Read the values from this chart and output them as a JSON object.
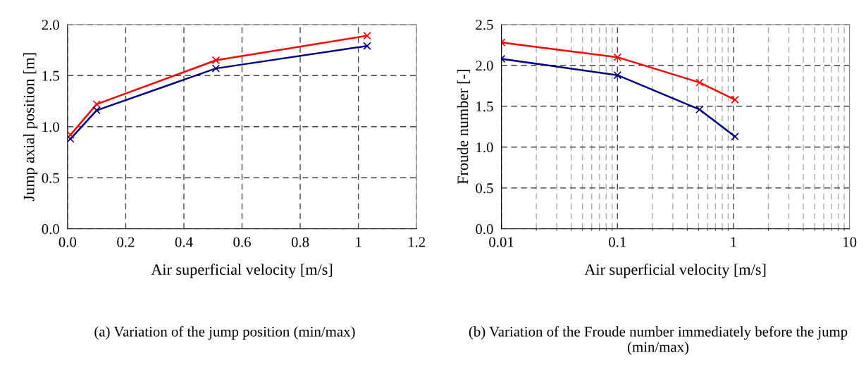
{
  "chart_data": [
    {
      "type": "line",
      "xlabel": "Air superficial velocity [m/s]",
      "ylabel": "Jump axial position [m]",
      "x": [
        0.01,
        0.1,
        0.51,
        1.03
      ],
      "series": [
        {
          "color": "#ff0000",
          "values": [
            0.92,
            1.22,
            1.65,
            1.89
          ]
        },
        {
          "color": "#000080",
          "values": [
            0.88,
            1.16,
            1.57,
            1.79
          ]
        }
      ],
      "xlim": [
        0,
        1.2
      ],
      "xticks": [
        {
          "value": 0,
          "label": "0.0"
        },
        0.2,
        0.4,
        0.6,
        0.8,
        1,
        {
          "value": 1.2,
          "label": "1.2"
        }
      ],
      "ylim": [
        0,
        2
      ],
      "yticks": [
        {
          "value": 0,
          "label": "0.0"
        },
        0.5,
        {
          "value": 1,
          "label": "1.0"
        },
        1.5,
        {
          "value": 2,
          "label": "2.0"
        }
      ],
      "grid": true,
      "marker": "cross",
      "line_style": "solid",
      "annotations": [
        "(a) Variation of the jump position (min/max)"
      ]
    },
    {
      "type": "line",
      "xlabel": "Air superficial velocity [m/s]",
      "ylabel": "Froude number [-]",
      "x": [
        0.01,
        0.1,
        0.51,
        1.03
      ],
      "series": [
        {
          "color": "#ff0000",
          "values": [
            2.28,
            2.1,
            1.79,
            1.58
          ]
        },
        {
          "color": "#000080",
          "values": [
            2.08,
            1.88,
            1.46,
            1.13
          ]
        }
      ],
      "log": "x",
      "xlim": [
        0.01,
        10
      ],
      "xticks": [
        0.01,
        0.1,
        1,
        10
      ],
      "ylim": [
        0,
        2.5
      ],
      "yticks": [
        {
          "value": 0,
          "label": "0.0"
        },
        0.5,
        {
          "value": 1,
          "label": "1.0"
        },
        1.5,
        {
          "value": 2,
          "label": "2.0"
        },
        2.5
      ],
      "grid": true,
      "marker": "cross",
      "line_style": "solid",
      "annotations": [
        "(b) Variation of the Froude number immediately before the jump (min/max)"
      ]
    }
  ]
}
